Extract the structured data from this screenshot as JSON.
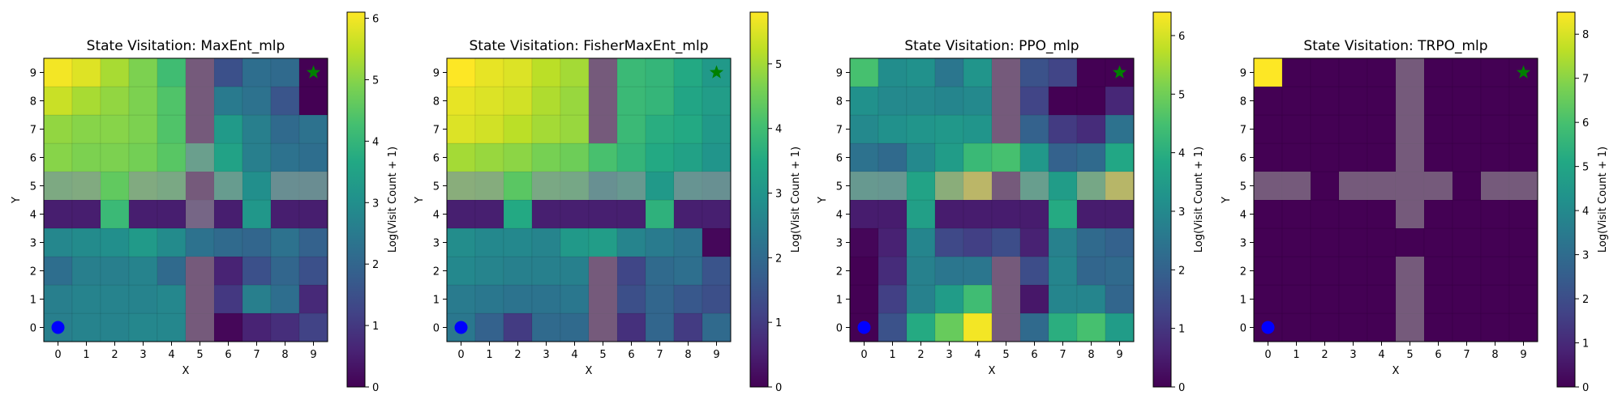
{
  "chart_data": [
    {
      "type": "heatmap",
      "title": "State Visitation: MaxEnt_mlp",
      "xlabel": "X",
      "ylabel": "Y",
      "colorbar_label": "Log(Visit Count + 1)",
      "x_ticks": [
        "0",
        "1",
        "2",
        "3",
        "4",
        "5",
        "6",
        "7",
        "8",
        "9"
      ],
      "y_ticks": [
        "0",
        "1",
        "2",
        "3",
        "4",
        "5",
        "6",
        "7",
        "8",
        "9"
      ],
      "colorbar_ticks": [
        "0",
        "1",
        "2",
        "3",
        "4",
        "5",
        "6"
      ],
      "vmax": 6.1,
      "colormap": "viridis",
      "start_marker": {
        "x": 0,
        "y": 0,
        "shape": "circle",
        "color": "#0000ff"
      },
      "goal_marker": {
        "x": 9,
        "y": 9,
        "shape": "star",
        "color": "#008000"
      },
      "walls": [
        [
          5,
          0
        ],
        [
          5,
          1
        ],
        [
          5,
          2
        ],
        [
          5,
          4
        ],
        [
          5,
          6
        ],
        [
          5,
          7
        ],
        [
          5,
          8
        ],
        [
          5,
          9
        ],
        [
          0,
          5
        ],
        [
          1,
          5
        ],
        [
          3,
          5
        ],
        [
          4,
          5
        ],
        [
          5,
          5
        ],
        [
          6,
          5
        ],
        [
          8,
          5
        ],
        [
          9,
          5
        ]
      ],
      "values": [
        [
          2.6,
          2.7,
          2.7,
          2.8,
          2.8,
          0,
          0.1,
          0.6,
          0.8,
          1.2
        ],
        [
          2.6,
          2.7,
          2.7,
          2.7,
          2.8,
          0,
          1.0,
          2.6,
          2.2,
          0.7
        ],
        [
          2.2,
          2.6,
          2.6,
          2.7,
          2.1,
          0,
          0.6,
          1.5,
          2.0,
          1.5
        ],
        [
          2.8,
          2.9,
          3.0,
          3.3,
          2.9,
          2.3,
          2.1,
          2.0,
          2.3,
          1.9
        ],
        [
          0.5,
          0.5,
          4.1,
          0.5,
          0.5,
          0.5,
          0.5,
          3.2,
          0.5,
          0.5
        ],
        [
          4.5,
          4.6,
          4.6,
          4.6,
          4.4,
          0,
          3.6,
          3.0,
          2.7,
          2.6
        ],
        [
          5.0,
          4.9,
          4.9,
          4.8,
          4.5,
          3.8,
          3.5,
          2.6,
          2.3,
          2.2
        ],
        [
          5.1,
          5.0,
          5.0,
          4.9,
          4.4,
          0,
          3.3,
          2.6,
          2.1,
          2.3
        ],
        [
          5.6,
          5.3,
          5.1,
          4.9,
          4.4,
          0,
          2.5,
          2.3,
          1.6,
          0.0
        ],
        [
          6.0,
          5.8,
          5.3,
          4.9,
          4.2,
          0,
          1.5,
          2.2,
          2.1,
          0.0
        ]
      ]
    },
    {
      "type": "heatmap",
      "title": "State Visitation: FisherMaxEnt_mlp",
      "xlabel": "X",
      "ylabel": "Y",
      "colorbar_label": "Log(Visit Count + 1)",
      "x_ticks": [
        "0",
        "1",
        "2",
        "3",
        "4",
        "5",
        "6",
        "7",
        "8",
        "9"
      ],
      "y_ticks": [
        "0",
        "1",
        "2",
        "3",
        "4",
        "5",
        "6",
        "7",
        "8",
        "9"
      ],
      "colorbar_ticks": [
        "0",
        "1",
        "2",
        "3",
        "4",
        "5"
      ],
      "vmax": 5.8,
      "colormap": "viridis",
      "start_marker": {
        "x": 0,
        "y": 0,
        "shape": "circle",
        "color": "#0000ff"
      },
      "goal_marker": {
        "x": 9,
        "y": 9,
        "shape": "star",
        "color": "#008000"
      },
      "walls": [
        [
          5,
          0
        ],
        [
          5,
          1
        ],
        [
          5,
          2
        ],
        [
          5,
          7
        ],
        [
          5,
          8
        ],
        [
          5,
          9
        ],
        [
          0,
          5
        ],
        [
          1,
          5
        ],
        [
          3,
          5
        ],
        [
          4,
          5
        ],
        [
          5,
          5
        ],
        [
          6,
          5
        ],
        [
          8,
          5
        ],
        [
          9,
          5
        ]
      ],
      "values": [
        [
          2.3,
          1.8,
          1.0,
          2.0,
          2.0,
          0,
          0.8,
          1.9,
          1.0,
          2.0
        ],
        [
          2.4,
          2.3,
          2.2,
          2.2,
          2.3,
          0,
          1.4,
          1.9,
          1.6,
          1.4
        ],
        [
          2.7,
          2.6,
          2.5,
          2.5,
          2.5,
          0,
          1.2,
          2.0,
          2.1,
          1.5
        ],
        [
          2.8,
          2.7,
          2.7,
          2.6,
          3.1,
          3.2,
          2.6,
          2.4,
          2.2,
          0.1
        ],
        [
          0.5,
          0.5,
          3.5,
          0.5,
          0.5,
          0.5,
          0.5,
          3.7,
          0.5,
          0.5
        ],
        [
          4.6,
          4.5,
          4.3,
          4.2,
          4.1,
          2.7,
          3.2,
          3.1,
          2.9,
          2.7
        ],
        [
          5.0,
          4.9,
          4.8,
          4.6,
          4.5,
          4.1,
          3.8,
          3.5,
          3.3,
          3.0
        ],
        [
          5.5,
          5.4,
          5.2,
          5.0,
          4.9,
          0,
          3.9,
          3.6,
          3.5,
          3.1
        ],
        [
          5.6,
          5.5,
          5.4,
          5.1,
          4.9,
          0,
          3.9,
          3.8,
          3.4,
          3.2
        ],
        [
          5.8,
          5.6,
          5.5,
          5.2,
          5.0,
          0,
          3.9,
          3.8,
          3.5,
          3.1
        ]
      ]
    },
    {
      "type": "heatmap",
      "title": "State Visitation: PPO_mlp",
      "xlabel": "X",
      "ylabel": "Y",
      "colorbar_label": "Log(Visit Count + 1)",
      "x_ticks": [
        "0",
        "1",
        "2",
        "3",
        "4",
        "5",
        "6",
        "7",
        "8",
        "9"
      ],
      "y_ticks": [
        "0",
        "1",
        "2",
        "3",
        "4",
        "5",
        "6",
        "7",
        "8",
        "9"
      ],
      "colorbar_ticks": [
        "0",
        "1",
        "2",
        "3",
        "4",
        "5",
        "6"
      ],
      "vmax": 6.4,
      "colormap": "viridis",
      "start_marker": {
        "x": 0,
        "y": 0,
        "shape": "circle",
        "color": "#0000ff"
      },
      "goal_marker": {
        "x": 9,
        "y": 9,
        "shape": "star",
        "color": "#008000"
      },
      "walls": [
        [
          5,
          0
        ],
        [
          5,
          1
        ],
        [
          5,
          2
        ],
        [
          5,
          7
        ],
        [
          5,
          8
        ],
        [
          5,
          9
        ],
        [
          0,
          5
        ],
        [
          1,
          5
        ],
        [
          3,
          5
        ],
        [
          4,
          5
        ],
        [
          5,
          5
        ],
        [
          6,
          5
        ],
        [
          8,
          5
        ],
        [
          9,
          5
        ]
      ],
      "values": [
        [
          0.0,
          1.6,
          3.9,
          4.9,
          6.3,
          0,
          2.2,
          4.0,
          4.5,
          3.5
        ],
        [
          0.0,
          1.2,
          2.8,
          3.5,
          4.4,
          0,
          0.4,
          2.9,
          2.9,
          2.1
        ],
        [
          0.0,
          0.8,
          2.8,
          2.5,
          2.5,
          0,
          1.5,
          2.9,
          2.1,
          2.2
        ],
        [
          0.1,
          0.6,
          2.9,
          1.4,
          1.2,
          1.5,
          0.6,
          2.8,
          2.2,
          2.0
        ],
        [
          0.5,
          0.5,
          3.6,
          0.5,
          0.5,
          0.5,
          0.5,
          3.9,
          0.5,
          0.5
        ],
        [
          3.6,
          3.4,
          3.7,
          5.1,
          6.3,
          0,
          3.9,
          3.5,
          4.5,
          6.2
        ],
        [
          2.4,
          2.2,
          3.0,
          3.5,
          4.3,
          4.5,
          3.4,
          2.0,
          2.2,
          3.8
        ],
        [
          3.0,
          3.2,
          3.3,
          3.4,
          3.3,
          0,
          2.0,
          1.1,
          0.8,
          2.4
        ],
        [
          3.2,
          3.0,
          3.0,
          2.9,
          3.0,
          0,
          1.3,
          0.0,
          0.0,
          0.7
        ],
        [
          4.5,
          3.1,
          3.2,
          2.5,
          3.3,
          0,
          1.6,
          1.3,
          0.0,
          0.0
        ]
      ]
    },
    {
      "type": "heatmap",
      "title": "State Visitation: TRPO_mlp",
      "xlabel": "X",
      "ylabel": "Y",
      "colorbar_label": "Log(Visit Count + 1)",
      "x_ticks": [
        "0",
        "1",
        "2",
        "3",
        "4",
        "5",
        "6",
        "7",
        "8",
        "9"
      ],
      "y_ticks": [
        "0",
        "1",
        "2",
        "3",
        "4",
        "5",
        "6",
        "7",
        "8",
        "9"
      ],
      "colorbar_ticks": [
        "0",
        "1",
        "2",
        "3",
        "4",
        "5",
        "6",
        "7",
        "8"
      ],
      "vmax": 8.5,
      "colormap": "viridis",
      "start_marker": {
        "x": 0,
        "y": 0,
        "shape": "circle",
        "color": "#0000ff"
      },
      "goal_marker": {
        "x": 9,
        "y": 9,
        "shape": "star",
        "color": "#008000"
      },
      "walls": [
        [
          5,
          0
        ],
        [
          5,
          1
        ],
        [
          5,
          2
        ],
        [
          5,
          4
        ],
        [
          5,
          6
        ],
        [
          5,
          7
        ],
        [
          5,
          8
        ],
        [
          5,
          9
        ],
        [
          0,
          5
        ],
        [
          1,
          5
        ],
        [
          3,
          5
        ],
        [
          4,
          5
        ],
        [
          5,
          5
        ],
        [
          6,
          5
        ],
        [
          8,
          5
        ],
        [
          9,
          5
        ]
      ],
      "values": [
        [
          0,
          0,
          0,
          0,
          0,
          0,
          0,
          0,
          0,
          0
        ],
        [
          0,
          0,
          0,
          0,
          0,
          0,
          0,
          0,
          0,
          0
        ],
        [
          0,
          0,
          0,
          0,
          0,
          0,
          0,
          0,
          0,
          0
        ],
        [
          0,
          0,
          0,
          0,
          0,
          0,
          0,
          0,
          0,
          0
        ],
        [
          0,
          0,
          0,
          0,
          0,
          0,
          0,
          0,
          0,
          0
        ],
        [
          0,
          0,
          0,
          0,
          0,
          0,
          0,
          0,
          0,
          0
        ],
        [
          0,
          0,
          0,
          0,
          0,
          0,
          0,
          0,
          0,
          0
        ],
        [
          0,
          0,
          0,
          0,
          0,
          0,
          0,
          0,
          0,
          0
        ],
        [
          0,
          0,
          0,
          0,
          0,
          0,
          0,
          0,
          0,
          0
        ],
        [
          8.5,
          0,
          0,
          0,
          0,
          0,
          0,
          0,
          0,
          0
        ]
      ]
    }
  ]
}
